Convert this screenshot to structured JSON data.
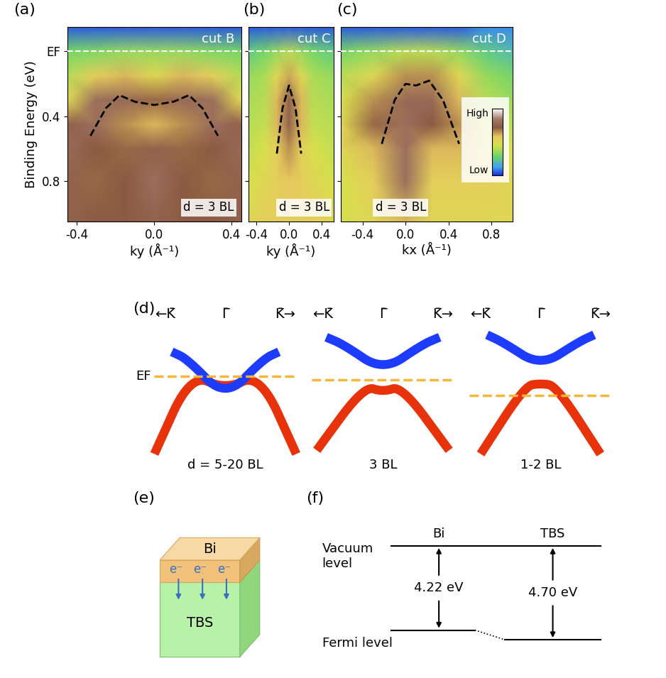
{
  "chart_data": [
    {
      "type": "heatmap",
      "panel": "(a)",
      "title": "cut B",
      "annotation": "d = 3 BL",
      "xlabel": "ky (Å⁻¹)",
      "ylabel": "Binding Energy (eV)",
      "xlim": [
        -0.45,
        0.45
      ],
      "xticks": [
        -0.4,
        0.0,
        0.4
      ],
      "ylim": [
        1.05,
        -0.15
      ],
      "yticks": [
        {
          "value": 0,
          "label": "EF"
        },
        0.4,
        0.8
      ],
      "intensity": {
        "range": [
          0,
          1
        ],
        "k": [
          -0.45,
          -0.3,
          -0.15,
          0.0,
          0.15,
          0.3,
          0.45
        ],
        "energy": [
          -0.15,
          0.0,
          0.15,
          0.3,
          0.45,
          0.6,
          0.8,
          1.05
        ],
        "cells": [
          [
            0.05,
            0.05,
            0.05,
            0.05,
            0.05,
            0.05,
            0.05
          ],
          [
            0.3,
            0.32,
            0.35,
            0.35,
            0.35,
            0.32,
            0.3
          ],
          [
            0.4,
            0.55,
            0.6,
            0.5,
            0.6,
            0.55,
            0.4
          ],
          [
            0.5,
            0.8,
            0.78,
            0.7,
            0.78,
            0.8,
            0.5
          ],
          [
            0.75,
            0.8,
            0.65,
            0.6,
            0.65,
            0.8,
            0.75
          ],
          [
            0.78,
            0.72,
            0.7,
            0.75,
            0.7,
            0.72,
            0.78
          ],
          [
            0.75,
            0.7,
            0.72,
            0.8,
            0.72,
            0.7,
            0.75
          ],
          [
            0.75,
            0.72,
            0.72,
            0.75,
            0.72,
            0.72,
            0.75
          ]
        ]
      },
      "fermi_line": {
        "energy": 0,
        "color": "white",
        "line_style": "dashed"
      },
      "dispersion": {
        "k": [
          -0.33,
          -0.25,
          -0.18,
          -0.1,
          0.0,
          0.1,
          0.18,
          0.25,
          0.33
        ],
        "energy": [
          0.52,
          0.35,
          0.27,
          0.31,
          0.33,
          0.31,
          0.27,
          0.35,
          0.52
        ],
        "color": "black",
        "line_style": "dashed"
      }
    },
    {
      "type": "heatmap",
      "panel": "(b)",
      "title": "cut C",
      "annotation": "d = 3 BL",
      "xlabel": "ky (Å⁻¹)",
      "tick_labels": "x",
      "xlim": [
        -0.5,
        0.55
      ],
      "xticks": [
        -0.4,
        0.0,
        0.4
      ],
      "ylim": [
        1.05,
        -0.15
      ],
      "yticks": [
        {
          "value": 0,
          "label": "EF"
        },
        0.4,
        0.8
      ],
      "intensity": {
        "range": [
          0,
          1
        ],
        "k": [
          -0.5,
          -0.3,
          -0.15,
          0.0,
          0.15,
          0.3,
          0.55
        ],
        "energy": [
          -0.15,
          0.0,
          0.15,
          0.3,
          0.45,
          0.6,
          0.8,
          1.05
        ],
        "cells": [
          [
            0.05,
            0.05,
            0.05,
            0.05,
            0.05,
            0.05,
            0.05
          ],
          [
            0.25,
            0.3,
            0.35,
            0.4,
            0.35,
            0.3,
            0.25
          ],
          [
            0.35,
            0.38,
            0.5,
            0.62,
            0.5,
            0.38,
            0.35
          ],
          [
            0.38,
            0.4,
            0.6,
            0.75,
            0.6,
            0.4,
            0.38
          ],
          [
            0.4,
            0.42,
            0.6,
            0.75,
            0.6,
            0.42,
            0.4
          ],
          [
            0.42,
            0.45,
            0.55,
            0.65,
            0.55,
            0.45,
            0.42
          ],
          [
            0.45,
            0.5,
            0.55,
            0.58,
            0.55,
            0.5,
            0.45
          ],
          [
            0.5,
            0.55,
            0.55,
            0.55,
            0.55,
            0.55,
            0.5
          ]
        ]
      },
      "fermi_line": {
        "energy": 0,
        "color": "white",
        "line_style": "dashed"
      },
      "dispersion": {
        "k": [
          -0.15,
          -0.08,
          0.0,
          0.08,
          0.15
        ],
        "energy": [
          0.63,
          0.35,
          0.21,
          0.35,
          0.63
        ],
        "color": "black",
        "line_style": "dashed"
      }
    },
    {
      "type": "heatmap",
      "panel": "(c)",
      "title": "cut D",
      "annotation": "d = 3 BL",
      "xlabel": "kx (Å⁻¹)",
      "tick_labels": "x",
      "xlim": [
        -0.6,
        1.0
      ],
      "xticks": [
        -0.4,
        0.0,
        0.4,
        0.8
      ],
      "ylim": [
        1.05,
        -0.15
      ],
      "yticks": [
        {
          "value": 0,
          "label": "EF"
        },
        0.4,
        0.8
      ],
      "intensity": {
        "range": [
          0,
          1
        ],
        "k": [
          -0.6,
          -0.3,
          0.0,
          0.25,
          0.5,
          0.75,
          1.0
        ],
        "energy": [
          -0.15,
          0.0,
          0.15,
          0.3,
          0.45,
          0.6,
          0.8,
          1.05
        ],
        "cells": [
          [
            0.05,
            0.05,
            0.05,
            0.05,
            0.05,
            0.1,
            0.1
          ],
          [
            0.3,
            0.35,
            0.4,
            0.4,
            0.35,
            0.25,
            0.2
          ],
          [
            0.4,
            0.5,
            0.65,
            0.65,
            0.5,
            0.35,
            0.3
          ],
          [
            0.45,
            0.65,
            0.78,
            0.78,
            0.6,
            0.4,
            0.35
          ],
          [
            0.5,
            0.7,
            0.8,
            0.72,
            0.65,
            0.45,
            0.4
          ],
          [
            0.5,
            0.6,
            0.8,
            0.6,
            0.6,
            0.5,
            0.45
          ],
          [
            0.45,
            0.55,
            0.8,
            0.55,
            0.55,
            0.55,
            0.5
          ],
          [
            0.45,
            0.5,
            0.6,
            0.5,
            0.5,
            0.5,
            0.5
          ]
        ]
      },
      "colorbar": {
        "high_label": "High",
        "low_label": "Low"
      },
      "fermi_line": {
        "energy": 0,
        "color": "white",
        "line_style": "dashed"
      },
      "dispersion": {
        "k": [
          -0.22,
          -0.1,
          0.0,
          0.1,
          0.22,
          0.35,
          0.5
        ],
        "energy": [
          0.57,
          0.3,
          0.2,
          0.21,
          0.18,
          0.3,
          0.57
        ],
        "color": "black",
        "line_style": "dashed"
      }
    }
  ],
  "band_diagram": {
    "panel": "(d)",
    "k_labels": [
      "←K̄",
      "Γ̄",
      "K̄→"
    ],
    "fermi_label": "EF",
    "cases": [
      "d = 5-20 BL",
      "3 BL",
      "1-2 BL"
    ],
    "colors": {
      "conduction": "#1e3cff",
      "valence": "#e8320a",
      "fermi": "#f5b63a"
    }
  },
  "interface_diagram": {
    "panel": "(e)",
    "top_layer": "Bi",
    "substrate": "TBS",
    "electron_label": "e⁻",
    "electrons": 3,
    "colors": {
      "top_layer": "#f2c27a",
      "substrate": "#b8f2a8",
      "electron": "#3a6fc0"
    }
  },
  "energy_diagram": {
    "panel": "(f)",
    "vacuum_label": [
      "Vacuum",
      "level"
    ],
    "vacuum_energy": 0,
    "fermi_label": "Fermi level",
    "materials": [
      {
        "name": "Bi",
        "work_function": 4.22,
        "label": "4.22 eV"
      },
      {
        "name": "TBS",
        "work_function": 4.7,
        "label": "4.70 eV"
      }
    ]
  }
}
